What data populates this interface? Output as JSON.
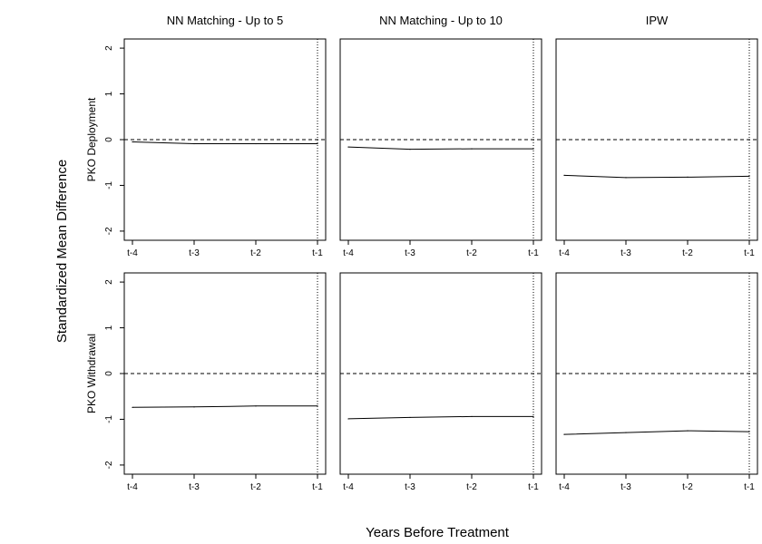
{
  "figure": {
    "ylabel": "Standardized Mean Difference",
    "xlabel": "Years Before Treatment"
  },
  "chart_data": {
    "type": "line",
    "column_titles": [
      "NN Matching - Up to 5",
      "NN Matching - Up to 10",
      "IPW"
    ],
    "row_labels": [
      "PKO Deployment",
      "PKO Withdrawal"
    ],
    "x_categories": [
      "t-4",
      "t-3",
      "t-2",
      "t-1"
    ],
    "y_ticks": [
      2,
      1,
      0,
      -1,
      -2
    ],
    "ylim": [
      -2.2,
      2.2
    ],
    "reference_line_y": 0,
    "vertical_reference_x": "t-1",
    "grid": false,
    "panels": [
      {
        "row": "PKO Deployment",
        "column": "NN Matching - Up to 5",
        "values": [
          -0.05,
          -0.09,
          -0.09,
          -0.09
        ]
      },
      {
        "row": "PKO Deployment",
        "column": "NN Matching - Up to 10",
        "values": [
          -0.16,
          -0.21,
          -0.2,
          -0.2
        ]
      },
      {
        "row": "PKO Deployment",
        "column": "IPW",
        "values": [
          -0.78,
          -0.83,
          -0.82,
          -0.8
        ]
      },
      {
        "row": "PKO Withdrawal",
        "column": "NN Matching - Up to 5",
        "values": [
          -0.74,
          -0.73,
          -0.71,
          -0.71
        ]
      },
      {
        "row": "PKO Withdrawal",
        "column": "NN Matching - Up to 10",
        "values": [
          -0.99,
          -0.96,
          -0.94,
          -0.94
        ]
      },
      {
        "row": "PKO Withdrawal",
        "column": "IPW",
        "values": [
          -1.33,
          -1.29,
          -1.25,
          -1.27
        ]
      }
    ]
  }
}
